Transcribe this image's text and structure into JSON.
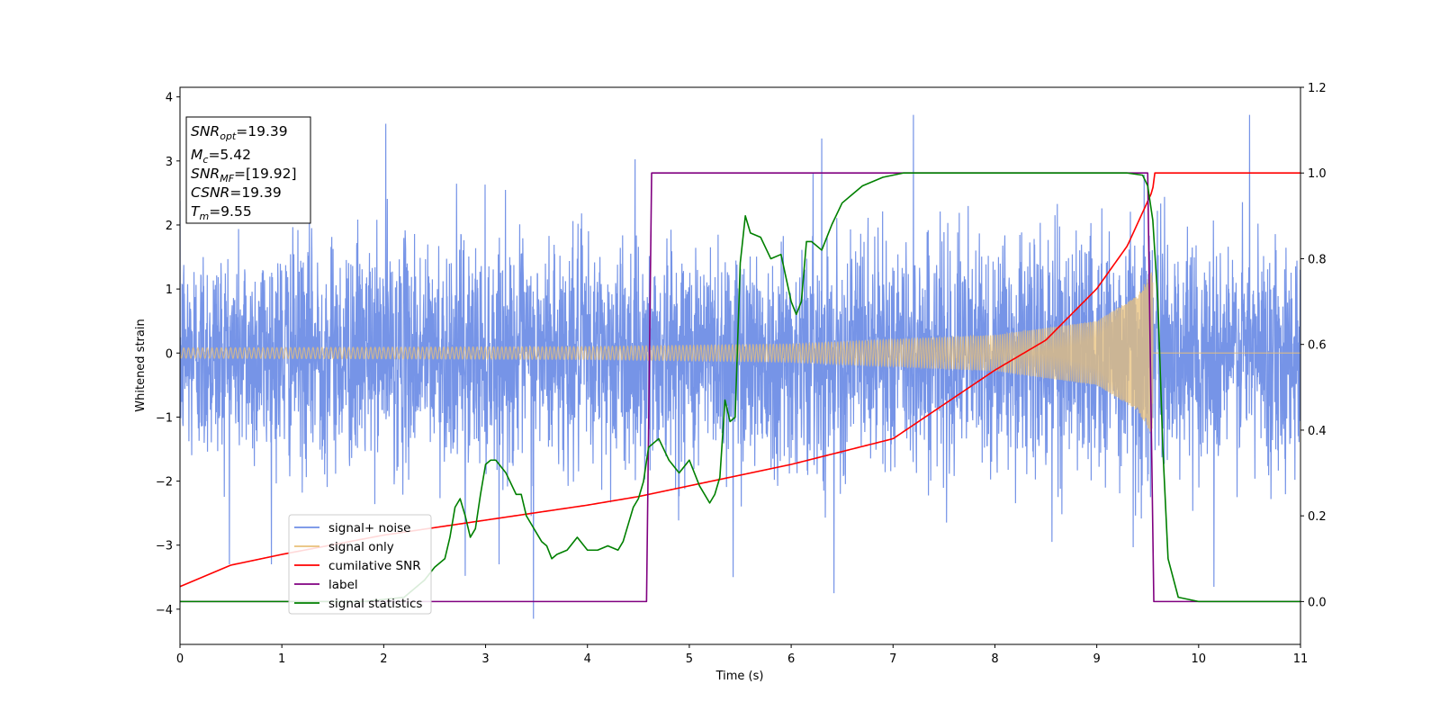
{
  "chart_data": {
    "type": "line",
    "xlabel": "Time (s)",
    "ylabel": "Whitened strain",
    "xlim": [
      0,
      11
    ],
    "ylim": [
      -4.55,
      4.15
    ],
    "y2lim": [
      -0.1,
      1.2
    ],
    "x_ticks": [
      0,
      1,
      2,
      3,
      4,
      5,
      6,
      7,
      8,
      9,
      10,
      11
    ],
    "y_ticks": [
      -4,
      -3,
      -2,
      -1,
      0,
      1,
      2,
      3,
      4
    ],
    "y2_ticks": [
      0.0,
      0.2,
      0.4,
      0.6,
      0.8,
      1.0,
      1.2
    ],
    "grid": false,
    "legend_position": "lower-left",
    "annotation_box": [
      {
        "symbol": "SNR",
        "sub": "opt",
        "value": "=19.39"
      },
      {
        "symbol": "M",
        "sub": "c",
        "value": "=5.42"
      },
      {
        "symbol": "SNR",
        "sub": "MF",
        "value": "=[19.92]"
      },
      {
        "symbol": "CSNR",
        "sub": "",
        "value": "=19.39"
      },
      {
        "symbol": "T",
        "sub": "m",
        "value": "=9.55"
      }
    ],
    "series": [
      {
        "name": "signal+ noise",
        "axis": "left",
        "color": "#6f8ee6",
        "noise_std": 0.85,
        "noise_peaks": [
          [
            2.02,
            3.58
          ],
          [
            3.47,
            -4.15
          ],
          [
            6.3,
            3.35
          ],
          [
            7.2,
            3.72
          ],
          [
            10.5,
            3.72
          ],
          [
            10.15,
            -3.65
          ],
          [
            6.42,
            -3.75
          ],
          [
            5.43,
            -3.5
          ],
          [
            2.8,
            -3.48
          ]
        ]
      },
      {
        "name": "signal only",
        "axis": "left",
        "color": "#e8c07a",
        "chirp_end": 9.55,
        "amplitude_envelope": [
          [
            0,
            0.08
          ],
          [
            4,
            0.1
          ],
          [
            6,
            0.14
          ],
          [
            8,
            0.28
          ],
          [
            9,
            0.5
          ],
          [
            9.4,
            0.9
          ],
          [
            9.55,
            1.3
          ]
        ]
      },
      {
        "name": "cumilative SNR",
        "axis": "right",
        "color": "#ff0000",
        "x": [
          0,
          0.5,
          1,
          2,
          3,
          4,
          4.5,
          5,
          6,
          7,
          8,
          8.5,
          9,
          9.3,
          9.55,
          9.56,
          11
        ],
        "y": [
          0.035,
          0.085,
          0.11,
          0.155,
          0.19,
          0.225,
          0.245,
          0.27,
          0.32,
          0.38,
          0.54,
          0.61,
          0.73,
          0.83,
          0.96,
          1.0,
          1.0
        ]
      },
      {
        "name": "label",
        "axis": "right",
        "color": "#800080",
        "x": [
          0,
          4.58,
          4.63,
          9.5,
          9.56,
          11
        ],
        "y": [
          0,
          0,
          1,
          1,
          0,
          0
        ]
      },
      {
        "name": "signal statistics",
        "axis": "right",
        "color": "#008000",
        "x": [
          0,
          1.8,
          2.2,
          2.4,
          2.5,
          2.6,
          2.65,
          2.7,
          2.75,
          2.8,
          2.85,
          2.9,
          2.95,
          3.0,
          3.05,
          3.1,
          3.2,
          3.3,
          3.35,
          3.4,
          3.5,
          3.55,
          3.6,
          3.65,
          3.7,
          3.8,
          3.9,
          4.0,
          4.1,
          4.2,
          4.3,
          4.35,
          4.4,
          4.45,
          4.5,
          4.55,
          4.6,
          4.7,
          4.8,
          4.9,
          5.0,
          5.1,
          5.2,
          5.25,
          5.3,
          5.35,
          5.4,
          5.45,
          5.5,
          5.55,
          5.6,
          5.7,
          5.8,
          5.9,
          6.0,
          6.05,
          6.1,
          6.15,
          6.2,
          6.3,
          6.4,
          6.5,
          6.6,
          6.7,
          6.8,
          6.9,
          7.0,
          7.1,
          7.5,
          8.0,
          9.0,
          9.3,
          9.45,
          9.5,
          9.55,
          9.6,
          9.65,
          9.7,
          9.8,
          10,
          11
        ],
        "y": [
          0.0,
          0.0,
          0.01,
          0.05,
          0.08,
          0.1,
          0.15,
          0.22,
          0.24,
          0.2,
          0.15,
          0.17,
          0.25,
          0.32,
          0.33,
          0.33,
          0.3,
          0.25,
          0.25,
          0.2,
          0.16,
          0.14,
          0.13,
          0.1,
          0.11,
          0.12,
          0.15,
          0.12,
          0.12,
          0.13,
          0.12,
          0.14,
          0.18,
          0.22,
          0.24,
          0.28,
          0.36,
          0.38,
          0.33,
          0.3,
          0.33,
          0.27,
          0.23,
          0.25,
          0.29,
          0.47,
          0.42,
          0.43,
          0.79,
          0.9,
          0.86,
          0.85,
          0.8,
          0.81,
          0.7,
          0.67,
          0.7,
          0.84,
          0.84,
          0.82,
          0.88,
          0.93,
          0.95,
          0.97,
          0.98,
          0.99,
          0.995,
          1.0,
          1.0,
          1.0,
          1.0,
          1.0,
          0.995,
          0.97,
          0.89,
          0.7,
          0.35,
          0.1,
          0.01,
          0.0,
          0.0
        ]
      }
    ]
  }
}
